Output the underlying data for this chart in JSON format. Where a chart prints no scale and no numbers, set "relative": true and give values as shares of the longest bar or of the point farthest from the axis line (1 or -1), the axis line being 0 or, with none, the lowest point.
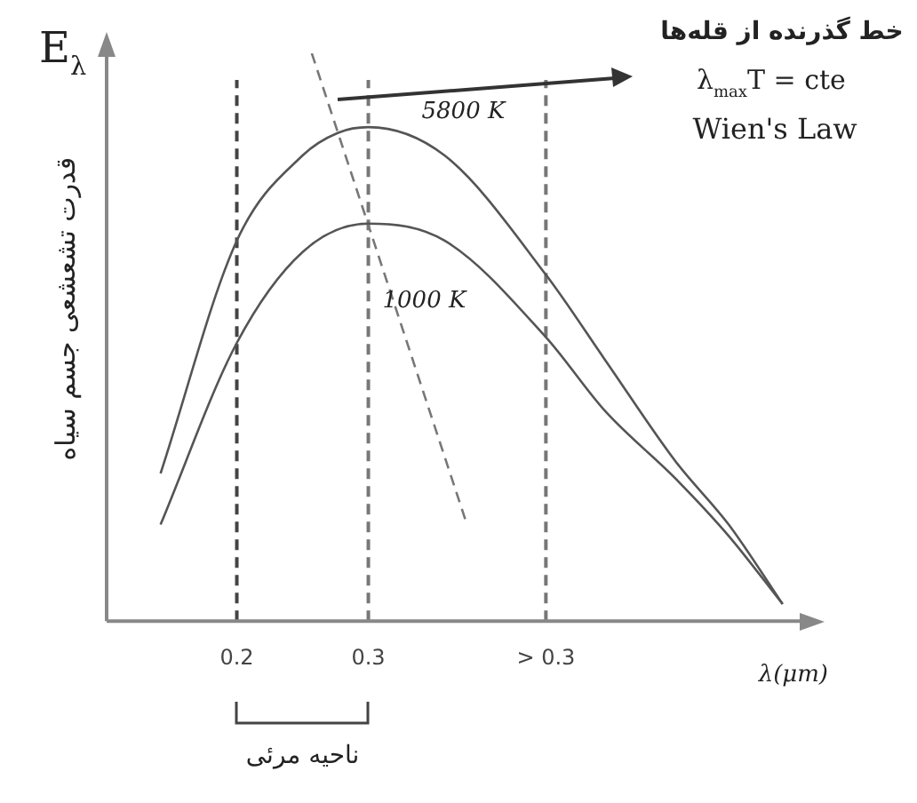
{
  "chart_data": {
    "type": "line",
    "relative": true,
    "xlabel": "λ(μm)",
    "ylabel": "قدرت تشعشعی جسم سیاه",
    "xlim": [
      0.101,
      0.628
    ],
    "xticks": [
      0.2,
      0.3,
      {
        "value": 0.435,
        "label": "> 0.3"
      }
    ],
    "grid": false,
    "legend": false,
    "marker": "none",
    "series": [
      {
        "name": "5800 K",
        "color": "#555555",
        "x": [
          0.142,
          0.2,
          0.25,
          0.277,
          0.3,
          0.358,
          0.435,
          0.48,
          0.534,
          0.574,
          0.615
        ],
        "values": [
          0.26,
          0.67,
          0.82,
          0.86,
          0.87,
          0.82,
          0.61,
          0.46,
          0.28,
          0.17,
          0.03
        ]
      },
      {
        "name": "1000 K",
        "color": "#555555",
        "x": [
          0.142,
          0.2,
          0.25,
          0.3,
          0.358,
          0.435,
          0.48,
          0.534,
          0.574,
          0.615
        ],
        "values": [
          0.17,
          0.49,
          0.65,
          0.7,
          0.67,
          0.5,
          0.37,
          0.25,
          0.15,
          0.03
        ]
      },
      {
        "color": "#777777",
        "line_style": "dashed",
        "x": [
          0.257,
          0.375
        ],
        "values": [
          1,
          0.17
        ]
      }
    ],
    "ref_lines": [
      {
        "axis": "x",
        "value": 0.2,
        "line_style": "dashed",
        "color": "#444444"
      },
      {
        "axis": "x",
        "value": 0.3,
        "line_style": "dashed",
        "color": "#777777"
      },
      {
        "axis": "x",
        "value": 0.435,
        "line_style": "dashed",
        "color": "#777777"
      }
    ],
    "annotations": [
      "E$_{λ}$",
      "خط گذرنده از قله‌ها",
      "λ$_{max}$T = cte",
      "Wien's Law",
      "ناحیه مرئی"
    ]
  }
}
